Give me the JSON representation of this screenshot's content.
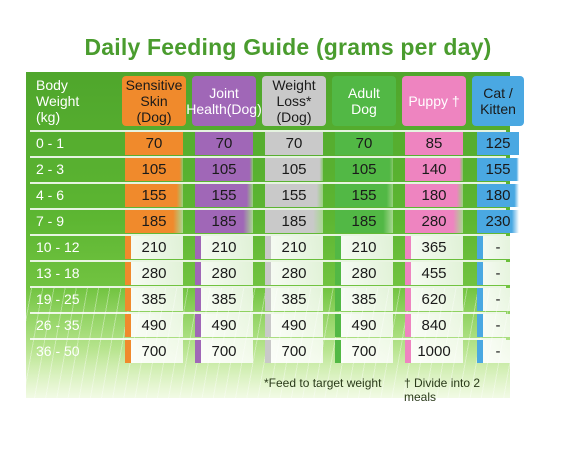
{
  "title": "Daily Feeding Guide (grams per day)",
  "columns": [
    {
      "key": "weight",
      "label": "Body Weight\n(kg)",
      "color": "#5bb233",
      "text": "#ffffff"
    },
    {
      "key": "sensitive",
      "label": "Sensitive\nSkin (Dog)",
      "color": "#f08a2c",
      "text": "#1a1a1a"
    },
    {
      "key": "joint",
      "label": "Joint\nHealth(Dog)",
      "color": "#a067b7",
      "text": "#ffffff"
    },
    {
      "key": "weightloss",
      "label": "Weight\nLoss*(Dog)",
      "color": "#c9c9c9",
      "text": "#1a1a1a"
    },
    {
      "key": "adult",
      "label": "Adult\nDog",
      "color": "#52b845",
      "text": "#ffffff"
    },
    {
      "key": "puppy",
      "label": "Puppy †",
      "color": "#ee84c0",
      "text": "#ffffff"
    },
    {
      "key": "cat",
      "label": "Cat /\nKitten",
      "color": "#4aa8e2",
      "text": "#1a1a1a"
    }
  ],
  "rows": [
    {
      "weight": "0 - 1",
      "values": [
        "70",
        "70",
        "70",
        "70",
        "85",
        "125"
      ]
    },
    {
      "weight": "2 - 3",
      "values": [
        "105",
        "105",
        "105",
        "105",
        "140",
        "155"
      ]
    },
    {
      "weight": "4 - 6",
      "values": [
        "155",
        "155",
        "155",
        "155",
        "180",
        "180"
      ]
    },
    {
      "weight": "7 - 9",
      "values": [
        "185",
        "185",
        "185",
        "185",
        "280",
        "230"
      ]
    },
    {
      "weight": "10 - 12",
      "values": [
        "210",
        "210",
        "210",
        "210",
        "365",
        "-"
      ]
    },
    {
      "weight": "13 - 18",
      "values": [
        "280",
        "280",
        "280",
        "280",
        "455",
        "-"
      ]
    },
    {
      "weight": "19 - 25",
      "values": [
        "385",
        "385",
        "385",
        "385",
        "620",
        "-"
      ]
    },
    {
      "weight": "26 - 35",
      "values": [
        "490",
        "490",
        "490",
        "490",
        "840",
        "-"
      ]
    },
    {
      "weight": "36 - 50",
      "values": [
        "700",
        "700",
        "700",
        "700",
        "1000",
        "-"
      ]
    }
  ],
  "footnotes": {
    "weight_loss": "*Feed to target weight",
    "puppy": "† Divide into 2 meals"
  }
}
